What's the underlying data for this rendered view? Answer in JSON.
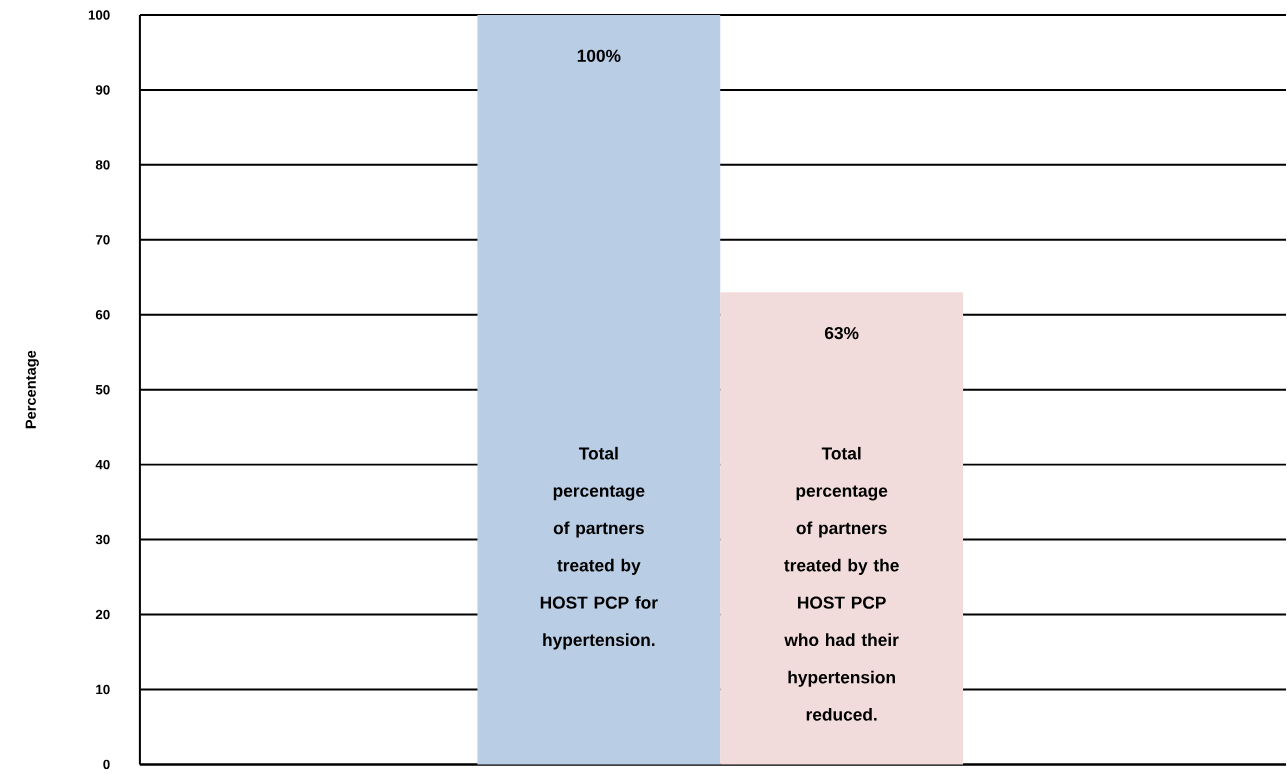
{
  "chart_data": {
    "type": "bar",
    "ylabel": "Percentage",
    "categories": [
      "Total percentage of partners treated by HOST PCP for hypertension.",
      "Total percentage of partners treated by the HOST PCP who had their hypertension reduced."
    ],
    "values": [
      100,
      63
    ],
    "colors": [
      "#b9cde5",
      "#f2dcdb"
    ],
    "value_labels": [
      "100%",
      "63%"
    ],
    "ylim": [
      0,
      100
    ],
    "yticks": [
      0,
      10,
      20,
      30,
      40,
      50,
      60,
      70,
      80,
      90,
      100
    ],
    "grid": "y"
  }
}
